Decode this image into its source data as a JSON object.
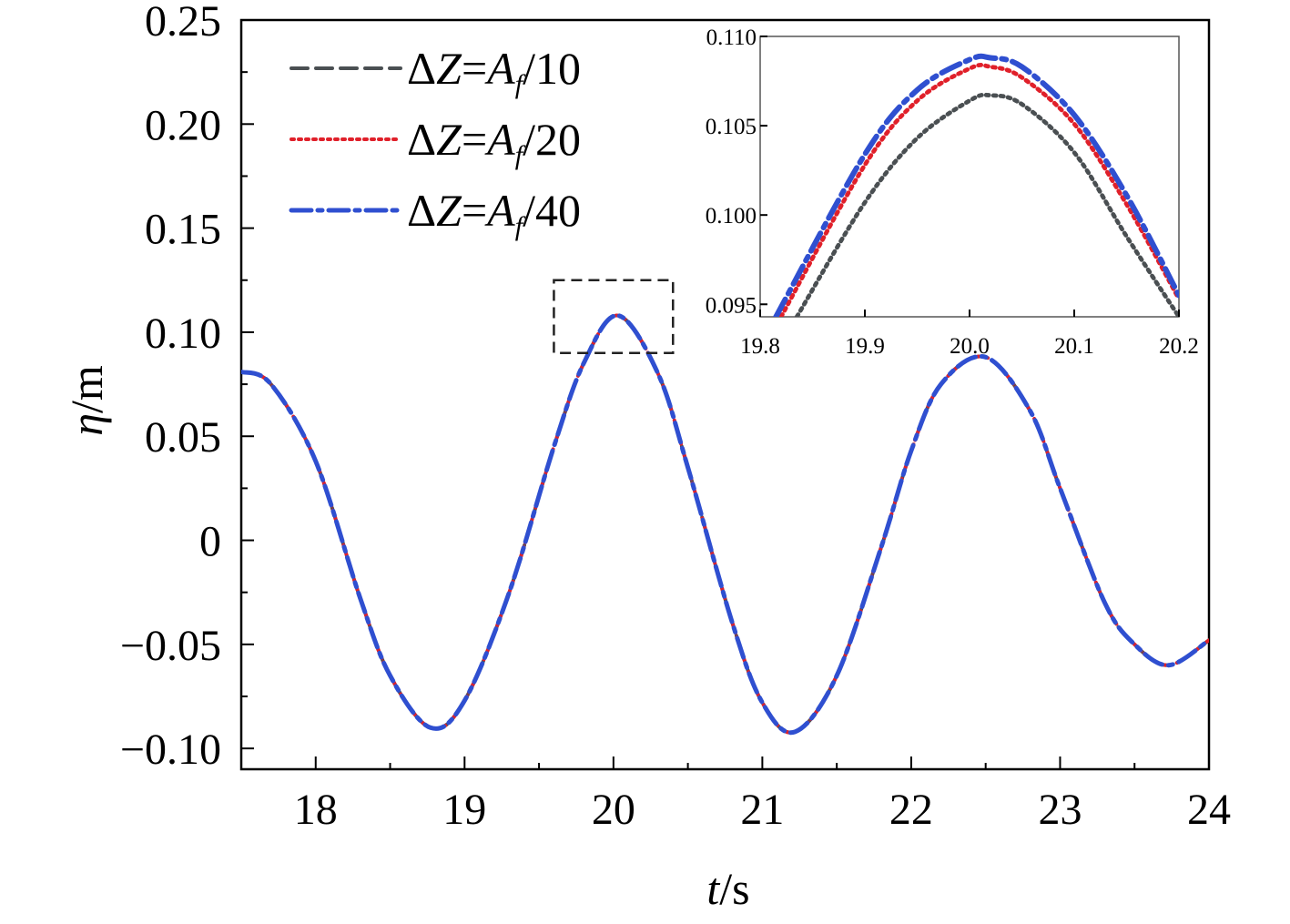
{
  "chart_data": [
    {
      "type": "line",
      "title": "",
      "xlabel_var": "t",
      "xlabel_unit": "/s",
      "ylabel_var": "η",
      "ylabel_unit": "/m",
      "xlim": [
        17.5,
        24
      ],
      "ylim": [
        -0.11,
        0.25
      ],
      "x_ticks": [
        18,
        19,
        20,
        21,
        22,
        23,
        24
      ],
      "x_tick_labels": [
        "18",
        "19",
        "20",
        "21",
        "22",
        "23",
        "24"
      ],
      "y_ticks": [
        0.25,
        0.2,
        0.15,
        0.1,
        0.05,
        0,
        -0.05,
        -0.1
      ],
      "y_tick_labels": [
        "0.25",
        "0.20",
        "0.15",
        "0.10",
        "0.05",
        "0",
        "−0.05",
        "−0.10"
      ],
      "grid": false,
      "legend_position": "top-left",
      "zoom_box": {
        "x": [
          19.6,
          20.4
        ],
        "y": [
          0.09,
          0.125
        ]
      },
      "series": [
        {
          "name": "ΔZ=Af/10",
          "legend": {
            "prefix": "ΔZ=",
            "var": "A",
            "sub": "f",
            "suffix": "/10"
          },
          "color": "#4a4f52",
          "style": "dashed",
          "x": [
            17.5,
            17.7,
            18.0,
            18.3,
            18.5,
            18.77,
            19.0,
            19.3,
            19.6,
            19.8,
            20.03,
            20.3,
            20.5,
            20.8,
            21.0,
            21.22,
            21.5,
            21.8,
            22.0,
            22.2,
            22.5,
            22.8,
            23.0,
            23.3,
            23.5,
            23.73,
            24.0
          ],
          "y": [
            0.081,
            0.075,
            0.038,
            -0.028,
            -0.065,
            -0.09,
            -0.077,
            -0.025,
            0.045,
            0.085,
            0.108,
            0.08,
            0.035,
            -0.04,
            -0.078,
            -0.092,
            -0.065,
            -0.003,
            0.043,
            0.075,
            0.088,
            0.062,
            0.025,
            -0.03,
            -0.05,
            -0.06,
            -0.048
          ]
        },
        {
          "name": "ΔZ=Af/20",
          "legend": {
            "prefix": "ΔZ=",
            "var": "A",
            "sub": "f",
            "suffix": "/20"
          },
          "color": "#e0202a",
          "style": "dotted",
          "x": [
            17.5,
            17.7,
            18.0,
            18.3,
            18.5,
            18.77,
            19.0,
            19.3,
            19.6,
            19.8,
            20.03,
            20.3,
            20.5,
            20.8,
            21.0,
            21.22,
            21.5,
            21.8,
            22.0,
            22.2,
            22.5,
            22.8,
            23.0,
            23.3,
            23.5,
            23.73,
            24.0
          ],
          "y": [
            0.081,
            0.075,
            0.038,
            -0.028,
            -0.065,
            -0.09,
            -0.077,
            -0.025,
            0.045,
            0.085,
            0.108,
            0.08,
            0.035,
            -0.04,
            -0.078,
            -0.092,
            -0.065,
            -0.003,
            0.043,
            0.075,
            0.088,
            0.062,
            0.025,
            -0.03,
            -0.05,
            -0.06,
            -0.048
          ]
        },
        {
          "name": "ΔZ=Af/40",
          "legend": {
            "prefix": "ΔZ=",
            "var": "A",
            "sub": "f",
            "suffix": "/40"
          },
          "color": "#2f4fd0",
          "style": "dashdot",
          "x": [
            17.5,
            17.7,
            18.0,
            18.3,
            18.5,
            18.77,
            19.0,
            19.3,
            19.6,
            19.8,
            20.03,
            20.3,
            20.5,
            20.8,
            21.0,
            21.22,
            21.5,
            21.8,
            22.0,
            22.2,
            22.5,
            22.8,
            23.0,
            23.3,
            23.5,
            23.73,
            24.0
          ],
          "y": [
            0.081,
            0.075,
            0.038,
            -0.028,
            -0.065,
            -0.09,
            -0.077,
            -0.025,
            0.045,
            0.085,
            0.108,
            0.08,
            0.035,
            -0.04,
            -0.078,
            -0.092,
            -0.065,
            -0.003,
            0.043,
            0.075,
            0.088,
            0.062,
            0.025,
            -0.03,
            -0.05,
            -0.06,
            -0.048
          ]
        }
      ]
    },
    {
      "type": "line",
      "title": "",
      "xlim": [
        19.8,
        20.2
      ],
      "ylim": [
        0.0943,
        0.11
      ],
      "x_ticks": [
        19.8,
        19.9,
        20.0,
        20.1,
        20.2
      ],
      "x_tick_labels": [
        "19.8",
        "19.9",
        "20.0",
        "20.1",
        "20.2"
      ],
      "y_ticks": [
        0.095,
        0.1,
        0.105,
        0.11
      ],
      "y_tick_labels": [
        "0.095",
        "0.100",
        "0.105",
        "0.110"
      ],
      "series": [
        {
          "name": "ΔZ=Af/10",
          "color": "#4a4f52",
          "style": "dotted",
          "x": [
            19.835,
            19.9,
            19.95,
            20.0,
            20.02,
            20.05,
            20.1,
            20.15,
            20.2
          ],
          "y": [
            0.0943,
            0.1007,
            0.1043,
            0.1064,
            0.1067,
            0.1062,
            0.1035,
            0.0988,
            0.0943
          ]
        },
        {
          "name": "ΔZ=Af/20",
          "color": "#e0202a",
          "style": "dotted",
          "x": [
            19.82,
            19.9,
            19.95,
            20.0,
            20.02,
            20.05,
            20.1,
            20.15,
            20.2
          ],
          "y": [
            0.0943,
            0.1028,
            0.1064,
            0.1082,
            0.1083,
            0.1077,
            0.1051,
            0.1006,
            0.0953
          ]
        },
        {
          "name": "ΔZ=Af/40",
          "color": "#2f4fd0",
          "style": "dashdot",
          "x": [
            19.815,
            19.9,
            19.95,
            20.0,
            20.02,
            20.05,
            20.1,
            20.15,
            20.2
          ],
          "y": [
            0.0943,
            0.1034,
            0.107,
            0.1087,
            0.1088,
            0.1083,
            0.1056,
            0.1011,
            0.0955
          ]
        }
      ]
    }
  ]
}
